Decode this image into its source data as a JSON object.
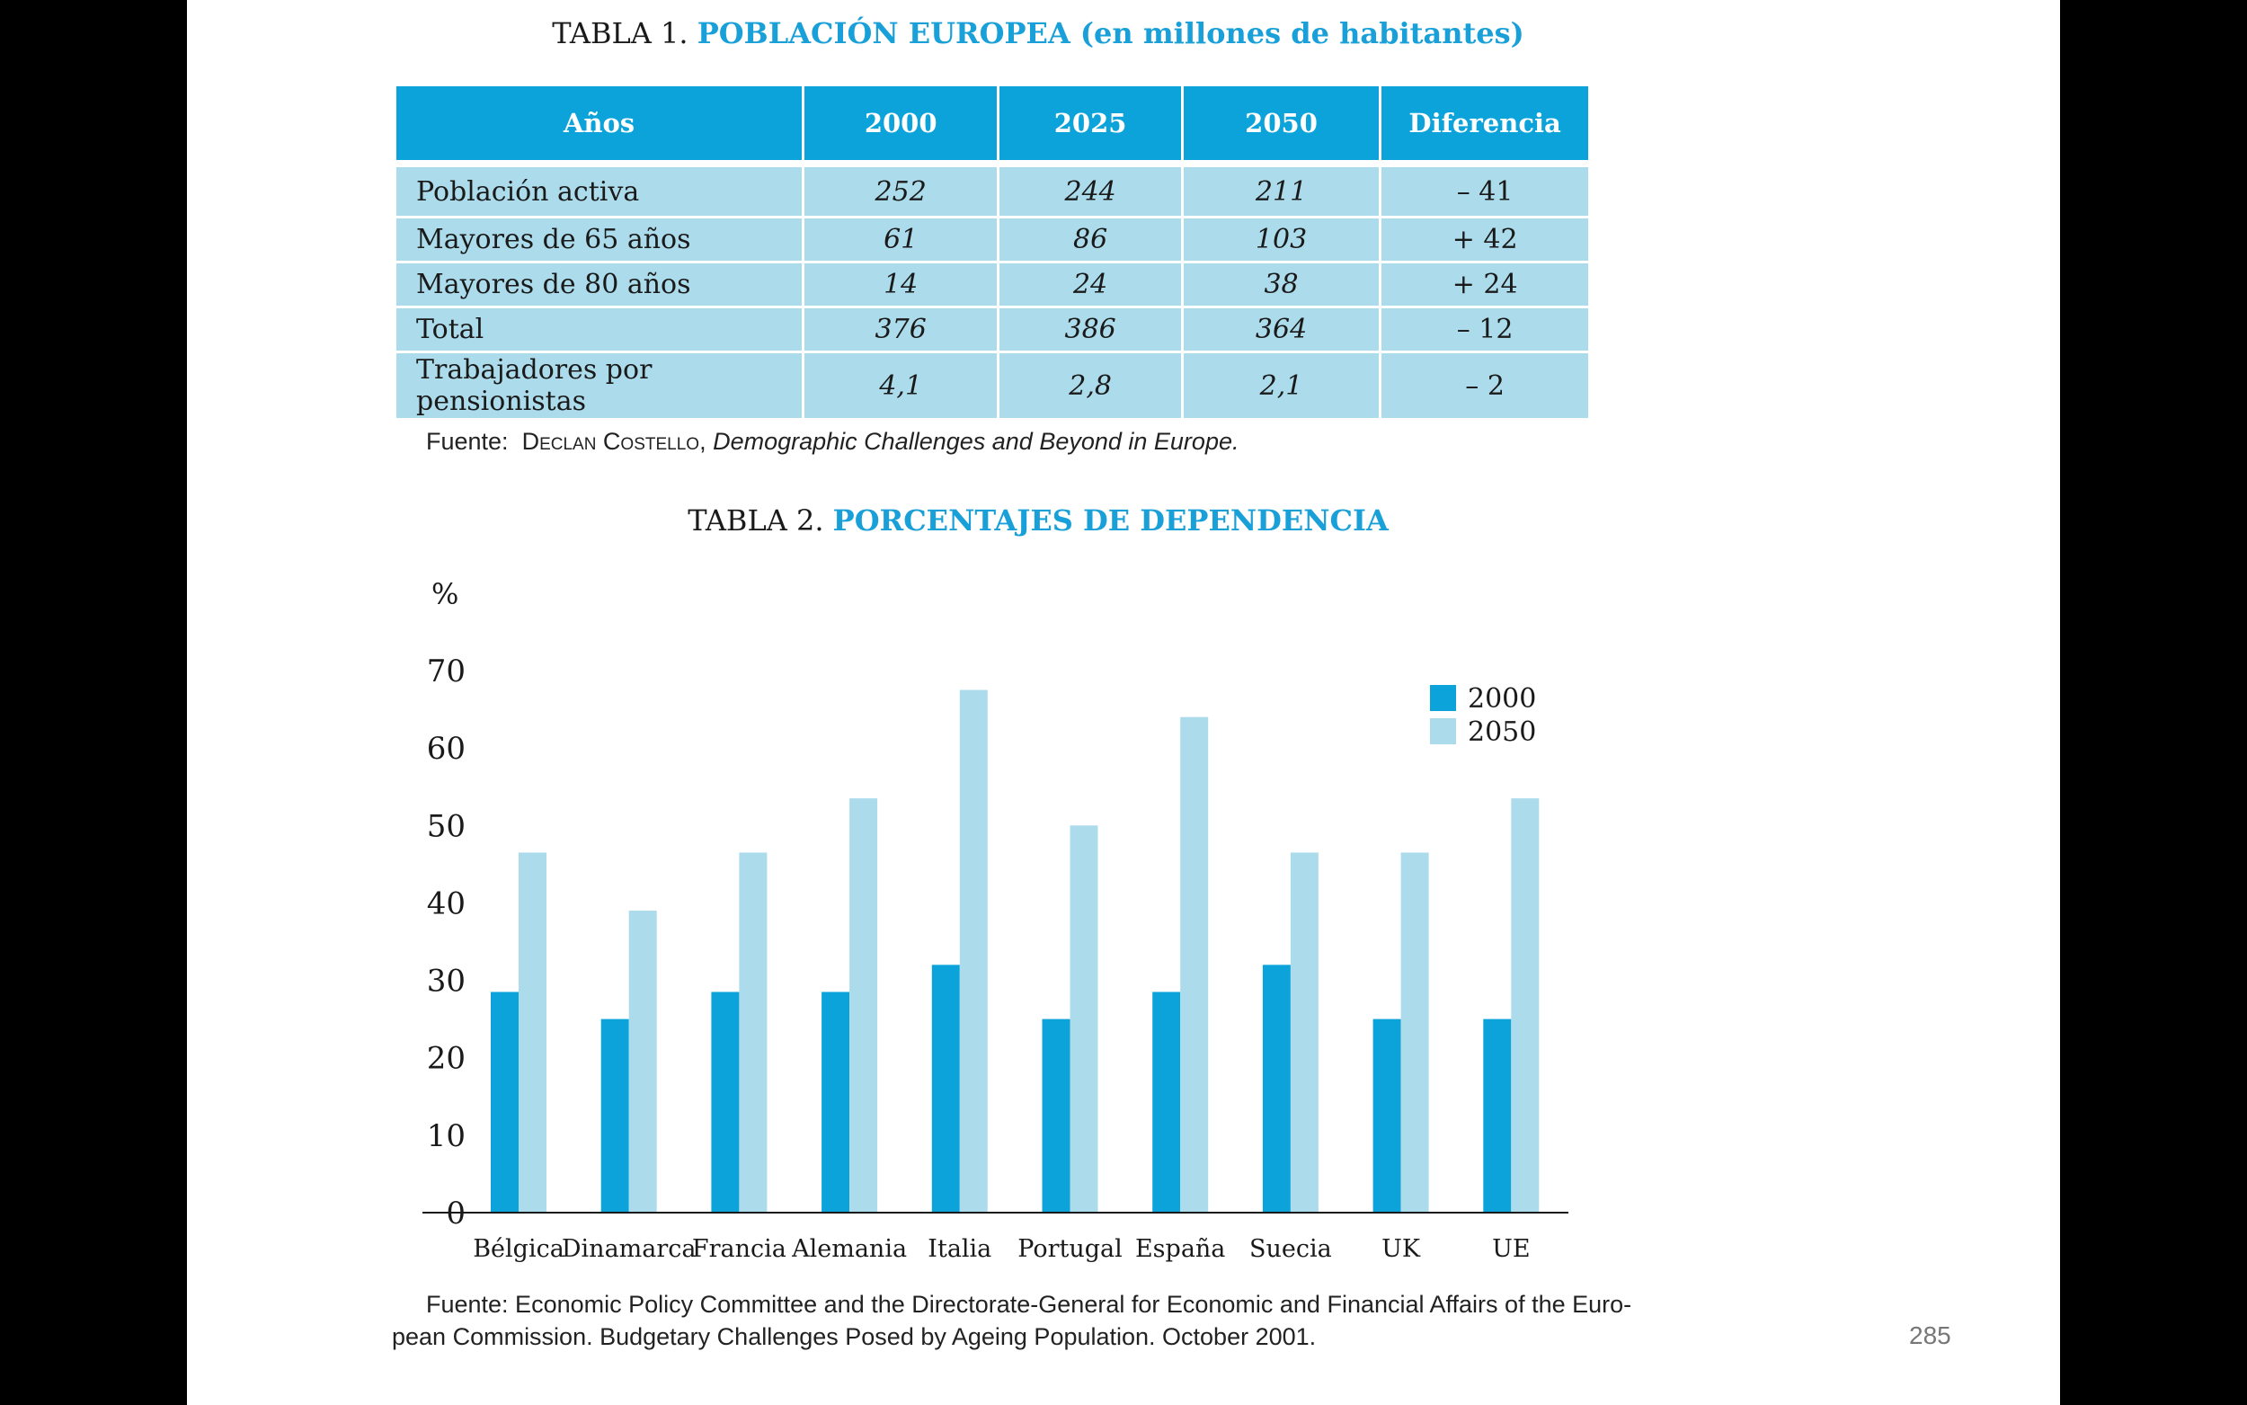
{
  "table1": {
    "label": "TABLA 1.",
    "title": "POBLACIÓN EUROPEA (en millones de habitantes)",
    "headers": [
      "Años",
      "2000",
      "2025",
      "2050",
      "Diferencia"
    ],
    "rows": [
      [
        "Población activa",
        "252",
        "244",
        "211",
        "– 41"
      ],
      [
        "Mayores de 65 años",
        "61",
        "86",
        "103",
        "+ 42"
      ],
      [
        "Mayores de 80 años",
        "14",
        "24",
        "38",
        "+ 24"
      ],
      [
        "Total",
        "376",
        "386",
        "364",
        "– 12"
      ],
      [
        "Trabajadores por pensionistas",
        "4,1",
        "2,8",
        "2,1",
        "– 2"
      ]
    ],
    "source_prefix": "Fuente:",
    "source_author": "Declan Costello",
    "source_title": "Demographic Challenges and Beyond in Europe."
  },
  "table2": {
    "label": "TABLA 2.",
    "title": "PORCENTAJES DE DEPENDENCIA",
    "source_line1": "Fuente:  Economic Policy Committee and the Directorate-General for Economic and Financial Affairs of the Euro-",
    "source_line2": "pean Commission. Budgetary Challenges Posed by Ageing Population. October 2001."
  },
  "chart_data": {
    "type": "bar",
    "ylabel": "%",
    "ylim": [
      0,
      70
    ],
    "yticks": [
      0,
      10,
      20,
      30,
      40,
      50,
      60,
      70
    ],
    "grid": false,
    "legend_position": "top-right",
    "categories": [
      "Bélgica",
      "Dinamarca",
      "Francia",
      "Alemania",
      "Italia",
      "Portugal",
      "España",
      "Suecia",
      "UK",
      "UE"
    ],
    "series": [
      {
        "name": "2000",
        "color": "#0ca3da",
        "values": [
          28.5,
          25,
          28.5,
          28.5,
          32,
          25,
          28.5,
          32,
          25,
          25
        ]
      },
      {
        "name": "2050",
        "color": "#acdcec",
        "values": [
          46.5,
          39,
          46.5,
          53.5,
          67.5,
          50,
          64,
          46.5,
          46.5,
          53.5
        ]
      }
    ]
  },
  "page_number": "285"
}
